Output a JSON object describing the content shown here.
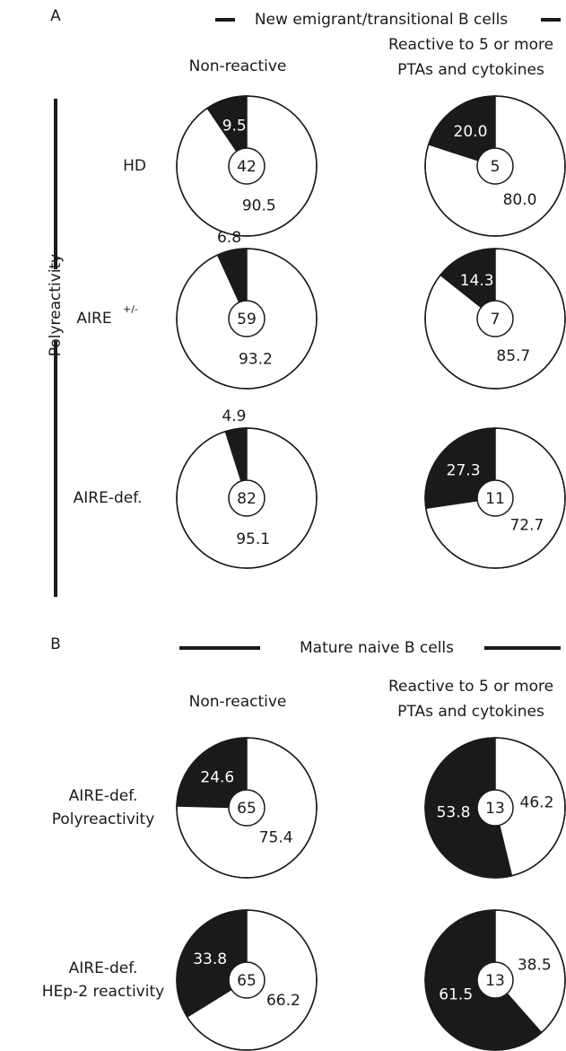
{
  "panels": [
    {
      "label": "A",
      "header": "New emigrant/transitional B cells",
      "columns": [
        [
          "Non-reactive"
        ],
        [
          "Reactive to 5 or more",
          "PTAs and cytokines"
        ]
      ],
      "side_label": "Polyreactivity",
      "rows": [
        {
          "lines": [
            "HD"
          ]
        },
        {
          "lines": [
            "AIRE"
          ],
          "sup": "+/-"
        },
        {
          "lines": [
            "AIRE-def."
          ]
        }
      ]
    },
    {
      "label": "B",
      "header": "Mature  naive B cells",
      "columns": [
        [
          "Non-reactive"
        ],
        [
          "Reactive to 5 or more",
          "PTAs and cytokines"
        ]
      ],
      "rows": [
        {
          "lines": [
            "AIRE-def.",
            "Polyreactivity"
          ]
        },
        {
          "lines": [
            "AIRE-def.",
            "HEp-2 reactivity"
          ]
        }
      ]
    }
  ],
  "chart_data": [
    {
      "type": "pie",
      "values": [
        9.5,
        90.5
      ],
      "value_labels": [
        "9.5",
        "90.5"
      ],
      "colors": [
        "#1a1a1a",
        "#ffffff"
      ],
      "center_value": 42
    },
    {
      "type": "pie",
      "values": [
        20,
        80
      ],
      "value_labels": [
        "20.0",
        "80.0"
      ],
      "colors": [
        "#1a1a1a",
        "#ffffff"
      ],
      "center_value": 5
    },
    {
      "type": "pie",
      "values": [
        6.8,
        93.2
      ],
      "value_labels": [
        "6.8",
        "93.2"
      ],
      "colors": [
        "#1a1a1a",
        "#ffffff"
      ],
      "center_value": 59
    },
    {
      "type": "pie",
      "values": [
        14.3,
        85.7
      ],
      "value_labels": [
        "14.3",
        "85.7"
      ],
      "colors": [
        "#1a1a1a",
        "#ffffff"
      ],
      "center_value": 7
    },
    {
      "type": "pie",
      "values": [
        4.9,
        95.1
      ],
      "value_labels": [
        "4.9",
        "95.1"
      ],
      "colors": [
        "#1a1a1a",
        "#ffffff"
      ],
      "center_value": 82
    },
    {
      "type": "pie",
      "values": [
        27.3,
        72.7
      ],
      "value_labels": [
        "27.3",
        "72.7"
      ],
      "colors": [
        "#1a1a1a",
        "#ffffff"
      ],
      "center_value": 11
    },
    {
      "type": "pie",
      "values": [
        24.6,
        75.4
      ],
      "value_labels": [
        "24.6",
        "75.4"
      ],
      "colors": [
        "#1a1a1a",
        "#ffffff"
      ],
      "center_value": 65
    },
    {
      "type": "pie",
      "values": [
        53.8,
        46.2
      ],
      "value_labels": [
        "53.8",
        "46.2"
      ],
      "colors": [
        "#1a1a1a",
        "#ffffff"
      ],
      "center_value": 13
    },
    {
      "type": "pie",
      "values": [
        33.8,
        66.2
      ],
      "value_labels": [
        "33.8",
        "66.2"
      ],
      "colors": [
        "#1a1a1a",
        "#ffffff"
      ],
      "center_value": 65
    },
    {
      "type": "pie",
      "values": [
        61.5,
        38.5
      ],
      "value_labels": [
        "61.5",
        "38.5"
      ],
      "colors": [
        "#1a1a1a",
        "#ffffff"
      ],
      "center_value": 13
    }
  ]
}
